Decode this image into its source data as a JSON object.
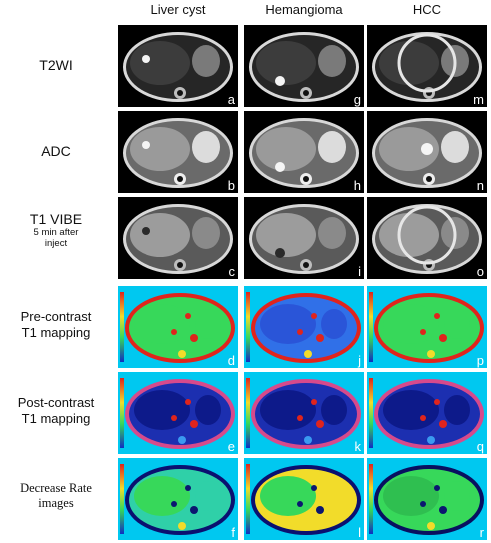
{
  "columns": [
    "Liver cyst",
    "Hemangioma",
    "HCC"
  ],
  "rows": [
    {
      "label_lines": [
        "T2WI"
      ],
      "sub_lines": [],
      "type": "t2",
      "letters": [
        "a",
        "g",
        "m"
      ]
    },
    {
      "label_lines": [
        "ADC"
      ],
      "sub_lines": [],
      "type": "adc",
      "letters": [
        "b",
        "h",
        "n"
      ]
    },
    {
      "label_lines": [
        "T1 VIBE"
      ],
      "sub_lines": [
        "5 min after",
        "inject"
      ],
      "type": "vibe",
      "letters": [
        "c",
        "i",
        "o"
      ]
    },
    {
      "label_lines": [
        "Pre-contrast",
        "T1 mapping"
      ],
      "sub_lines": [],
      "type": "pre",
      "letters": [
        "d",
        "j",
        "p"
      ]
    },
    {
      "label_lines": [
        "Post-contrast",
        "T1 mapping"
      ],
      "sub_lines": [],
      "type": "post",
      "letters": [
        "e",
        "k",
        "q"
      ]
    },
    {
      "label_lines": [
        "Decrease Rate",
        "images"
      ],
      "sub_lines": [],
      "type": "rate",
      "letters": [
        "f",
        "l",
        "r"
      ]
    }
  ],
  "colors": {
    "mri_background": "#000000",
    "map_background": "#00c8f0",
    "post_body": "#1c2fb0",
    "rate_body": "#2fd0a8",
    "hot": "#e0241c",
    "warm": "#f2dc2a",
    "green": "#37d85a",
    "letter": "#ffffff"
  }
}
